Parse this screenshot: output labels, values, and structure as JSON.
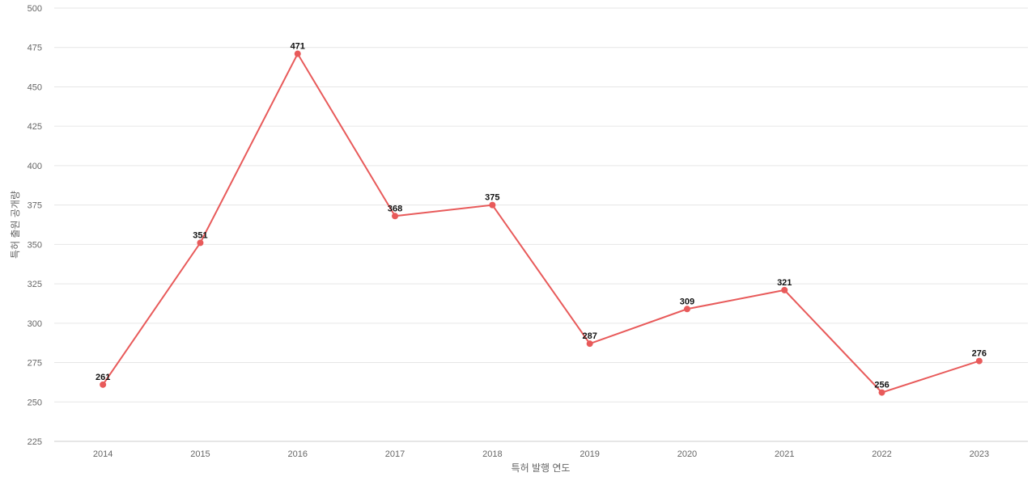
{
  "chart_data": {
    "type": "line",
    "title": "",
    "xlabel": "특허 발행 연도",
    "ylabel": "특허 출원 공개량",
    "categories": [
      "2014",
      "2015",
      "2016",
      "2017",
      "2018",
      "2019",
      "2020",
      "2021",
      "2022",
      "2023"
    ],
    "series": [
      {
        "values": [
          261,
          351,
          471,
          368,
          375,
          287,
          309,
          321,
          256,
          276
        ],
        "color": "#e85a5a"
      }
    ],
    "ylim": [
      225,
      500
    ],
    "yticks": [
      225,
      250,
      275,
      300,
      325,
      350,
      375,
      400,
      425,
      450,
      475,
      500
    ],
    "grid": true,
    "data_labels": true,
    "legend": "none"
  }
}
